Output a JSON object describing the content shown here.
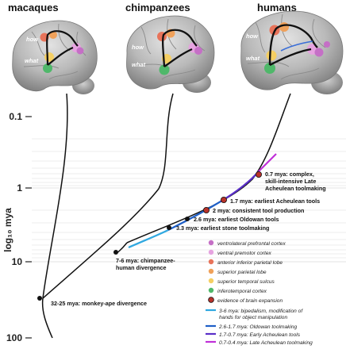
{
  "species": {
    "macaques": "macaques",
    "chimpanzees": "chimpanzees",
    "humans": "humans"
  },
  "stream_labels": {
    "how": "how",
    "what": "what"
  },
  "axis": {
    "ylabel": "log₁₀ mya",
    "ticks": [
      "0.1",
      "1",
      "10",
      "100"
    ]
  },
  "annotations": {
    "hominin_split_1": "7-6 mya: chimpanzee-",
    "hominin_split_2": "human divergence",
    "monkey_ape": "32-25 mya: monkey-ape divergence",
    "stone": "3.3 mya: earliest stone toolmaking",
    "oldowan": "2.6 mya: earliest Oldowan tools",
    "consistent": "2 mya: consistent tool production",
    "acheulean": "1.7 mya: earliest Acheulean tools",
    "late_1": "0.7 mya: complex,",
    "late_2": "skill-intensive Late",
    "late_3": "Acheulean toolmaking"
  },
  "legend": {
    "regions": [
      {
        "label": "ventrolateral prefrontal cortex",
        "color": "#c56fc6"
      },
      {
        "label": "ventral premotor cortex",
        "color": "#e6a3e0"
      },
      {
        "label": "anterior inferior parietal lobe",
        "color": "#e8735a"
      },
      {
        "label": "superior parietal lobe",
        "color": "#f0a15a"
      },
      {
        "label": "superior temporal sulcus",
        "color": "#f5cf63"
      },
      {
        "label": "inferotemporal cortex",
        "color": "#4fb86a"
      },
      {
        "label": "evidence of brain expansion",
        "color": "#b8322a"
      }
    ],
    "lines": [
      {
        "label_1": "3-6 mya: bipedalism, modification of",
        "label_2": "hands for object manipulation",
        "color": "#30a8e0"
      },
      {
        "label_1": "2.6-1.7 mya: Oldowan toolmaking",
        "color": "#1f5fc7"
      },
      {
        "label_1": "1.7-0.7 mya: Early Acheulean tools",
        "color": "#5a2fc8"
      },
      {
        "label_1": "0.7-0.4 mya: Late Acheulean toolmaking",
        "color": "#c030d8"
      }
    ]
  }
}
